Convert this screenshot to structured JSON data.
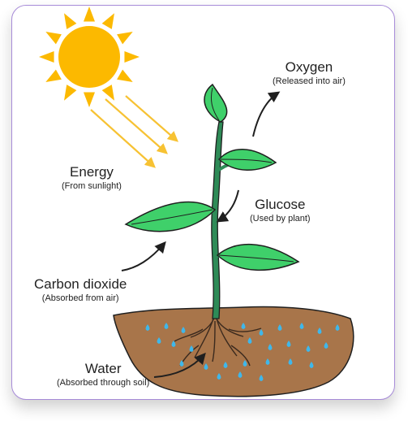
{
  "colors": {
    "frame_border": "#a78bd8",
    "sun": "#fcb900",
    "sun_rays": "#f7c233",
    "leaf": "#3fd06a",
    "leaf_outline": "#1f1f1f",
    "stem": "#2e8b57",
    "soil": "#a8754a",
    "water_drops": "#3fb7ea",
    "arrow": "#1f1f1f"
  },
  "labels": {
    "oxygen": {
      "title": "Oxygen",
      "subtitle": "(Released into air)"
    },
    "energy": {
      "title": "Energy",
      "subtitle": "(From sunlight)"
    },
    "glucose": {
      "title": "Glucose",
      "subtitle": "(Used by plant)"
    },
    "carbon_dioxide": {
      "title": "Carbon dioxide",
      "subtitle": "(Absorbed from air)"
    },
    "water": {
      "title": "Water",
      "subtitle": "(Absorbed through soil)"
    }
  }
}
